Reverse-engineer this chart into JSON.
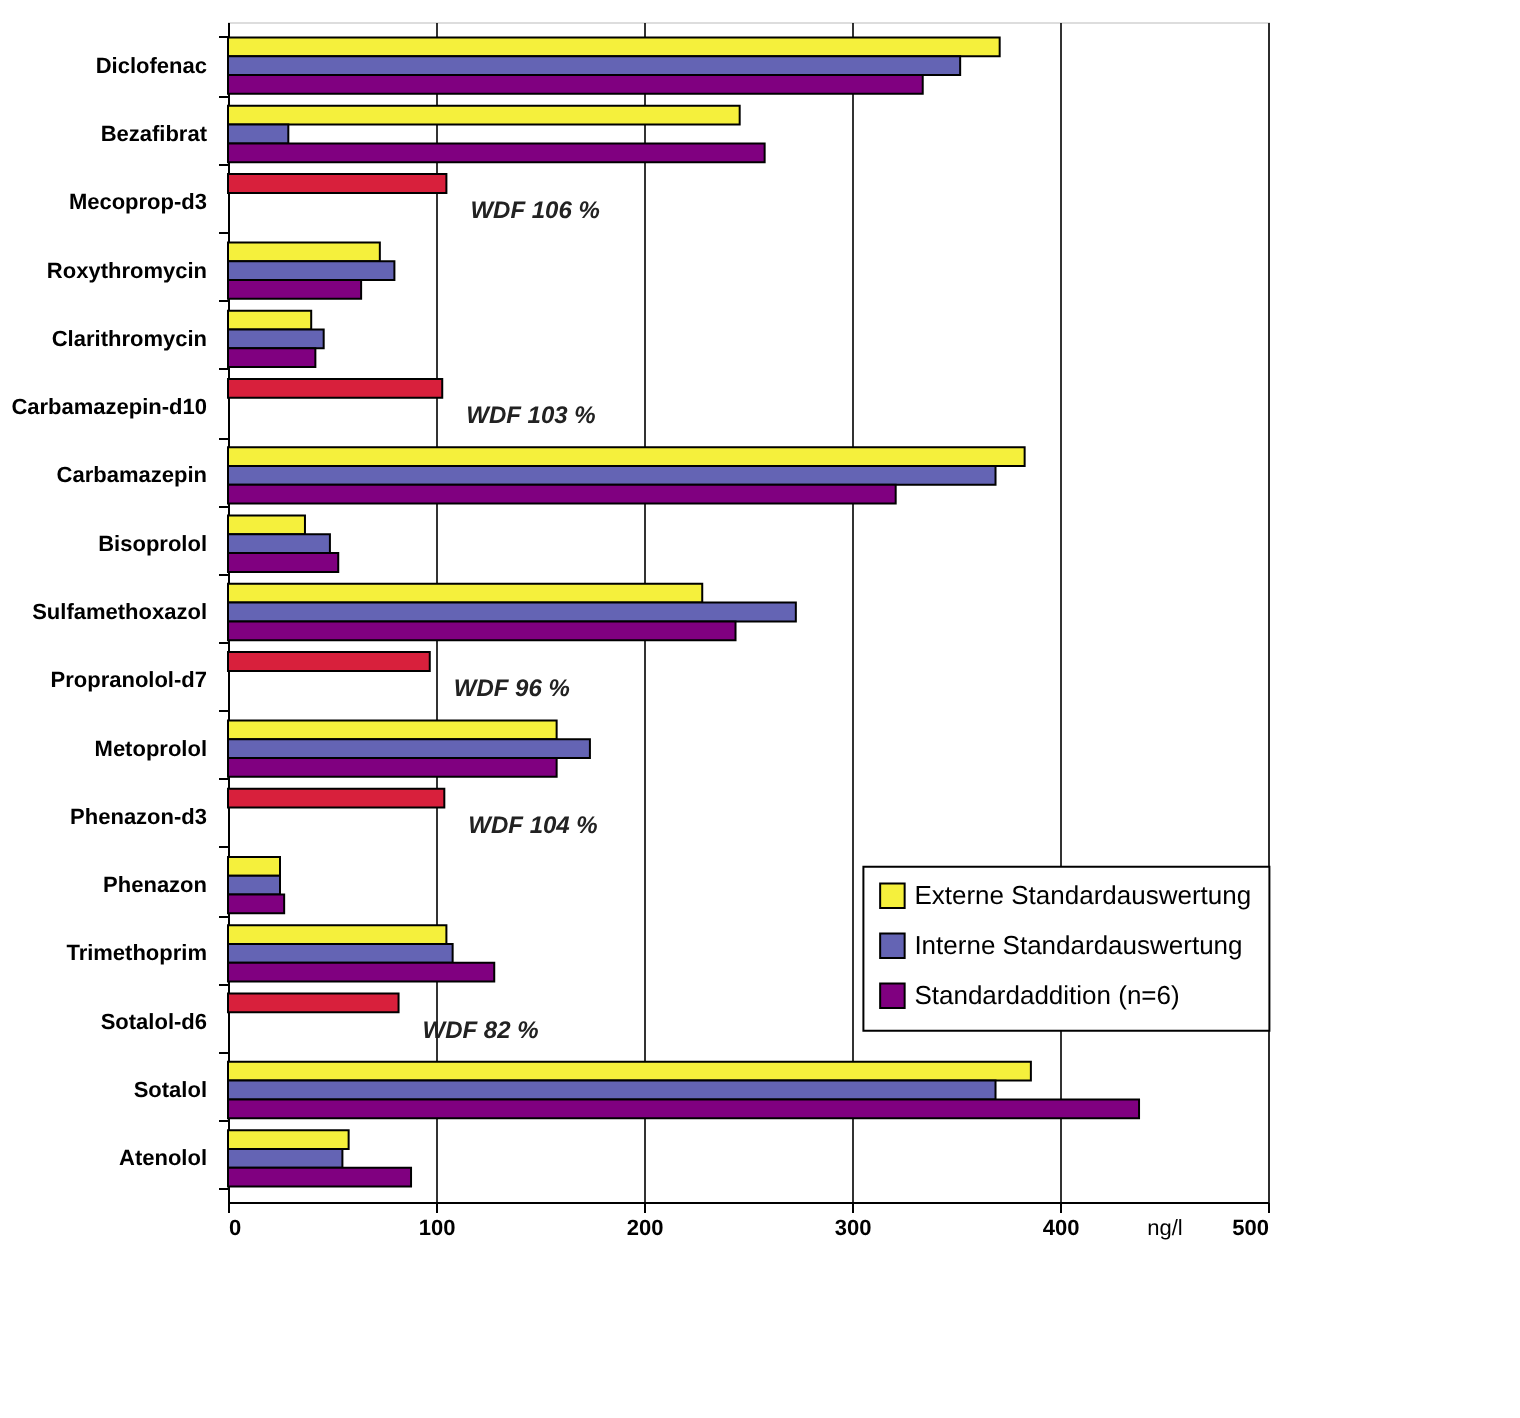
{
  "chart_data": {
    "type": "bar",
    "orientation": "horizontal",
    "categories": [
      "Diclofenac",
      "Bezafibrat",
      "Mecoprop-d3",
      "Roxythromycin",
      "Clarithromycin",
      "Carbamazepin-d10",
      "Carbamazepin",
      "Bisoprolol",
      "Sulfamethoxazol",
      "Propranolol-d7",
      "Metoprolol",
      "Phenazon-d3",
      "Phenazon",
      "Trimethoprim",
      "Sotalol-d6",
      "Sotalol",
      "Atenolol"
    ],
    "series": [
      {
        "name": "Externe Standardauswertung",
        "color": "#f5f03c",
        "values": [
          371,
          246,
          null,
          73,
          40,
          null,
          383,
          37,
          228,
          null,
          158,
          null,
          25,
          105,
          null,
          386,
          58
        ]
      },
      {
        "name": "Interne Standardauswertung",
        "color": "#6464b4",
        "values": [
          352,
          29,
          null,
          80,
          46,
          null,
          369,
          49,
          273,
          null,
          174,
          null,
          25,
          108,
          null,
          369,
          55
        ]
      },
      {
        "name": "Standardaddition (n=6)",
        "color": "#800080",
        "values": [
          334,
          258,
          null,
          64,
          42,
          null,
          321,
          53,
          244,
          null,
          158,
          null,
          27,
          128,
          null,
          438,
          88
        ]
      },
      {
        "color": "#d8203c",
        "values": [
          null,
          null,
          105,
          null,
          null,
          103,
          null,
          null,
          null,
          97,
          null,
          104,
          null,
          null,
          82,
          null,
          null
        ]
      }
    ],
    "xlabel": "ng/l",
    "xlim": [
      0,
      500
    ],
    "xticks": [
      0,
      100,
      200,
      300,
      400,
      500
    ],
    "grid": "x",
    "legend": "bottom right",
    "annotations": [
      "WDF 106 %",
      "WDF 103 %",
      "WDF 96 %",
      "WDF 104 %",
      "WDF 82 %"
    ]
  }
}
